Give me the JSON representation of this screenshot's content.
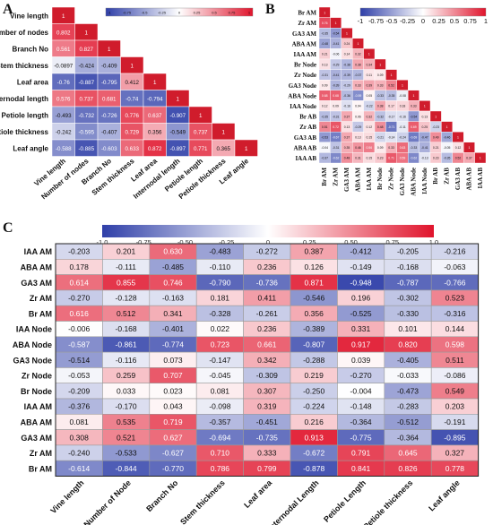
{
  "panels": [
    {
      "label": "A"
    },
    {
      "label": "B"
    },
    {
      "label": "C"
    }
  ],
  "chart_data": [
    {
      "type": "heatmap",
      "panel": "A",
      "variables": [
        "Vine length",
        "Number of nodes",
        "Branch No",
        "Stem thickness",
        "Leaf area",
        "Internodal length",
        "Petiole length",
        "Petiole thickness",
        "Leaf angle"
      ],
      "lower_triangle": [
        [
          1
        ],
        [
          0.802,
          1
        ],
        [
          0.561,
          0.827,
          1
        ],
        [
          -0.0897,
          -0.424,
          -0.409,
          1
        ],
        [
          -0.76,
          -0.887,
          -0.795,
          0.412,
          1
        ],
        [
          0.576,
          0.737,
          0.681,
          -0.74,
          -0.794,
          1
        ],
        [
          -0.493,
          -0.732,
          -0.726,
          0.776,
          0.637,
          -0.907,
          1
        ],
        [
          -0.242,
          -0.595,
          -0.407,
          0.729,
          0.356,
          -0.549,
          0.737,
          1
        ],
        [
          -0.588,
          -0.885,
          -0.603,
          0.633,
          0.872,
          -0.897,
          0.771,
          0.365,
          1
        ]
      ],
      "colorbar_ticks": [
        "-1",
        "-0.75",
        "-0.5",
        "-0.25",
        "0",
        "0.25",
        "0.5",
        "0.75",
        "1"
      ],
      "range": [
        -1,
        1
      ]
    },
    {
      "type": "heatmap",
      "panel": "B",
      "variables": [
        "Br AM",
        "Zr AM",
        "GA3 AM",
        "ABA AM",
        "IAA AM",
        "Br Node",
        "Zr Node",
        "GA3 Node",
        "ABA Node",
        "IAA Node",
        "Br AB",
        "Zr AB",
        "GA3 AB",
        "ABA AB",
        "IAA AB"
      ],
      "lower_triangle": [
        [
          1
        ],
        [
          0.76,
          1
        ],
        [
          -0.35,
          -0.54,
          1
        ],
        [
          -0.48,
          -0.41,
          0.24,
          1
        ],
        [
          0.21,
          -0.06,
          0.14,
          0.32,
          1
        ],
        [
          0.13,
          -0.29,
          -0.38,
          0.38,
          0.34,
          1
        ],
        [
          -0.31,
          -0.41,
          -0.39,
          -0.37,
          0.11,
          0.09,
          1
        ],
        [
          0.09,
          -0.39,
          -0.29,
          0.33,
          0.39,
          0.33,
          0.52,
          1
        ],
        [
          0.68,
          0.68,
          -0.36,
          -0.59,
          0.05,
          -0.33,
          -0.35,
          -0.08,
          1
        ],
        [
          0.12,
          0.09,
          -0.16,
          0.04,
          -0.22,
          0.38,
          0.17,
          0.18,
          0.33,
          1
        ],
        [
          -0.35,
          -0.31,
          0.37,
          0.06,
          0.32,
          -0.32,
          -0.17,
          -0.16,
          -0.54,
          0.13,
          1
        ],
        [
          0.51,
          0.72,
          0.13,
          -0.29,
          0.12,
          0.48,
          -0.71,
          -0.11,
          0.69,
          0.25,
          -0.23,
          1
        ],
        [
          -0.53,
          -0.67,
          0.37,
          0.13,
          0.15,
          -0.21,
          -0.14,
          -0.24,
          -0.69,
          -0.47,
          0.49,
          -0.46,
          1
        ],
        [
          -0.04,
          -0.31,
          0.35,
          0.46,
          0.56,
          0.09,
          0.33,
          0.63,
          -0.33,
          -0.41,
          0.21,
          -0.05,
          0.12,
          1
        ],
        [
          -0.37,
          -0.62,
          0.48,
          0.31,
          0.15,
          0.23,
          0.71,
          0.59,
          -0.62,
          -0.13,
          0.23,
          -0.35,
          0.52,
          0.37,
          1
        ]
      ],
      "colorbar_ticks": [
        "-1",
        "-0.75",
        "-0.5",
        "-0.25",
        "0",
        "0.25",
        "0.5",
        "0.75",
        "1"
      ],
      "range": [
        -1,
        1
      ]
    },
    {
      "type": "heatmap",
      "panel": "C",
      "rows": [
        "IAA AM",
        "ABA AM",
        "GA3 AM",
        "Zr AM",
        "Br AM",
        "IAA Node",
        "ABA Node",
        "GA3 Node",
        "Zr Node",
        "Br Node",
        "IAA AM",
        "ABA AM",
        "GA3 AM",
        "Zr AM",
        "Br AM"
      ],
      "cols": [
        "Vine length",
        "Number of Node",
        "Branch No",
        "Stem thickness",
        "Leaf area",
        "Internodal Length",
        "Petiole Length",
        "Petiole thickness",
        "Leaf angle"
      ],
      "values": [
        [
          -0.203,
          0.201,
          0.63,
          -0.483,
          -0.272,
          0.387,
          -0.412,
          -0.205,
          -0.216
        ],
        [
          0.178,
          -0.111,
          -0.485,
          -0.11,
          0.236,
          0.126,
          -0.149,
          -0.168,
          -0.063
        ],
        [
          0.614,
          0.855,
          0.746,
          -0.79,
          -0.736,
          0.871,
          -0.948,
          -0.787,
          -0.766
        ],
        [
          -0.27,
          -0.128,
          -0.163,
          0.181,
          0.411,
          -0.546,
          0.196,
          -0.302,
          0.523
        ],
        [
          0.616,
          0.512,
          0.341,
          -0.328,
          -0.261,
          0.356,
          -0.525,
          -0.33,
          -0.316
        ],
        [
          -0.006,
          -0.168,
          -0.401,
          0.022,
          0.236,
          -0.389,
          0.331,
          0.101,
          0.144
        ],
        [
          -0.587,
          -0.861,
          -0.774,
          0.723,
          0.661,
          -0.807,
          0.917,
          0.82,
          0.598
        ],
        [
          -0.514,
          -0.116,
          0.073,
          -0.147,
          0.342,
          -0.288,
          0.039,
          -0.405,
          0.511
        ],
        [
          -0.053,
          0.259,
          0.707,
          -0.045,
          -0.309,
          0.219,
          -0.27,
          -0.033,
          -0.086
        ],
        [
          -0.209,
          0.033,
          0.023,
          0.081,
          0.307,
          -0.25,
          -0.004,
          -0.473,
          0.549
        ],
        [
          -0.376,
          -0.17,
          0.043,
          -0.098,
          0.319,
          -0.224,
          -0.148,
          -0.283,
          0.203
        ],
        [
          0.081,
          0.535,
          0.719,
          -0.357,
          -0.451,
          0.216,
          -0.364,
          -0.512,
          -0.191
        ],
        [
          0.308,
          0.521,
          0.627,
          -0.694,
          -0.735,
          0.913,
          -0.775,
          -0.364,
          -0.895
        ],
        [
          -0.24,
          -0.533,
          -0.627,
          0.71,
          0.333,
          -0.672,
          0.791,
          0.645,
          0.327
        ],
        [
          -0.614,
          -0.844,
          -0.77,
          0.786,
          0.799,
          -0.878,
          0.841,
          0.826,
          0.778
        ]
      ],
      "colorbar_ticks": [
        "-1.0",
        "-0.75",
        "-0.50",
        "-0.25",
        "0",
        "0.25",
        "0.50",
        "0.75",
        "1.0"
      ],
      "range": [
        -1,
        1
      ]
    }
  ],
  "colors": {
    "negative": "#2f3fa8",
    "neutral": "#ffffff",
    "positive": "#e0142c",
    "diagonal": "#d01c2c",
    "panelA_background": "#3f6fc8",
    "gridline": "#9a9a9a"
  }
}
